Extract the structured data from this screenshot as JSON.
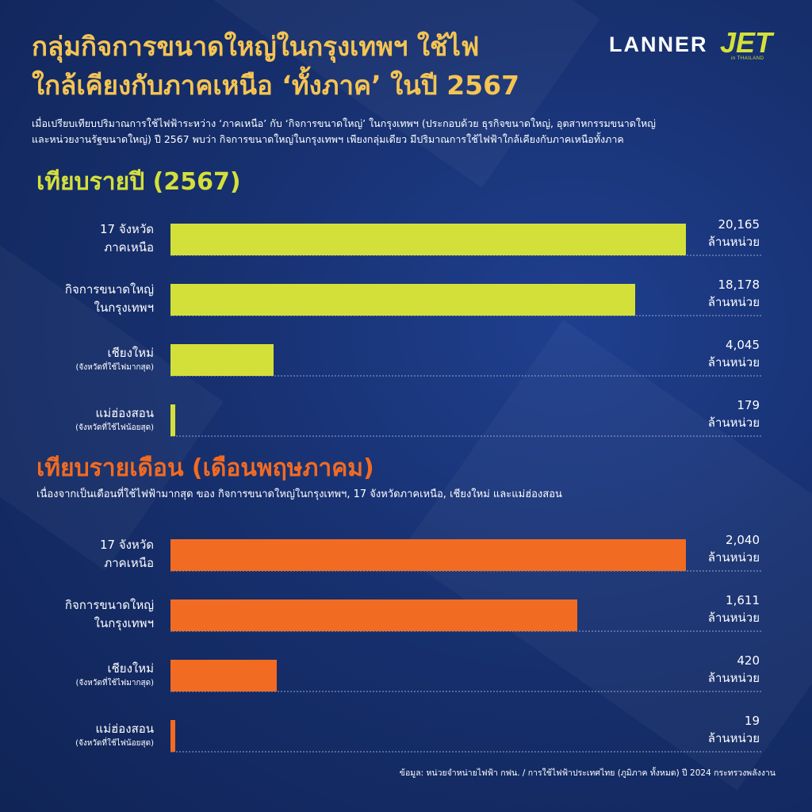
{
  "colors": {
    "accent_gold": "#f5c452",
    "yearly_bar": "#d4e03a",
    "monthly_bar": "#f26b22",
    "background": "#14306e"
  },
  "title_lines": [
    "กลุ่มกิจการขนาดใหญ่ในกรุงเทพฯ ใช้ไฟ",
    "ใกล้เคียงกับภาคเหนือ ‘ทั้งภาค’ ในปี 2567"
  ],
  "logos": {
    "lanner": "LANNER",
    "jet": "JET",
    "jet_sub": "in THAILAND"
  },
  "intro_lines": [
    "เมื่อเปรียบเทียบปริมาณการใช้ไฟฟ้าระหว่าง ‘ภาคเหนือ’ กับ ‘กิจการขนาดใหญ่’ ในกรุงเทพฯ (ประกอบด้วย ธุรกิจขนาดใหญ่, อุตสาหกรรมขนาดใหญ่",
    "และหน่วยงานรัฐขนาดใหญ่) ปี 2567 พบว่า กิจการขนาดใหญ่ในกรุงเทพฯ เพียงกลุ่มเดียว มีปริมาณการใช้ไฟฟ้าใกล้เคียงกับภาคเหนือทั้งภาค"
  ],
  "source": "ข้อมูล:  หน่วยจำหน่ายไฟฟ้า กฟน. / การใช้ไฟฟ้าประเทศไทย (ภูมิภาค ทั้งหมด) ปี 2024 กระทรวงพลังงาน",
  "chart_data": [
    {
      "type": "bar",
      "title": "เทียบรายปี (2567)",
      "subtitle": "",
      "unit": "ล้านหน่วย",
      "categories": [
        {
          "line1": "17 จังหวัด",
          "line2": "ภาคเหนือ",
          "sub": ""
        },
        {
          "line1": "กิจการขนาดใหญ่",
          "line2": "ในกรุงเทพฯ",
          "sub": ""
        },
        {
          "line1": "เชียงใหม่",
          "line2": "",
          "sub": "(จังหวัดที่ใช้ไฟมากสุด)"
        },
        {
          "line1": "แม่ฮ่องสอน",
          "line2": "",
          "sub": "(จังหวัดที่ใช้ไฟน้อยสุด)"
        }
      ],
      "values": [
        20165,
        18178,
        4045,
        179
      ],
      "value_labels": [
        "20,165",
        "18,178",
        "4,045",
        "179"
      ],
      "color": "#d4e03a"
    },
    {
      "type": "bar",
      "title": "เทียบรายเดือน (เดือนพฤษภาคม)",
      "subtitle": "เนื่องจากเป็นเดือนที่ใช้ไฟฟ้ามากสุด ของ กิจการขนาดใหญ่ในกรุงเทพฯ, 17 จังหวัดภาคเหนือ, เชียงใหม่ และแม่ฮ่องสอน",
      "unit": "ล้านหน่วย",
      "categories": [
        {
          "line1": "17 จังหวัด",
          "line2": "ภาคเหนือ",
          "sub": ""
        },
        {
          "line1": "กิจการขนาดใหญ่",
          "line2": "ในกรุงเทพฯ",
          "sub": ""
        },
        {
          "line1": "เชียงใหม่",
          "line2": "",
          "sub": "(จังหวัดที่ใช้ไฟมากสุด)"
        },
        {
          "line1": "แม่ฮ่องสอน",
          "line2": "",
          "sub": "(จังหวัดที่ใช้ไฟน้อยสุด)"
        }
      ],
      "values": [
        2040,
        1611,
        420,
        19
      ],
      "value_labels": [
        "2,040",
        "1,611",
        "420",
        "19"
      ],
      "color": "#f26b22"
    }
  ]
}
